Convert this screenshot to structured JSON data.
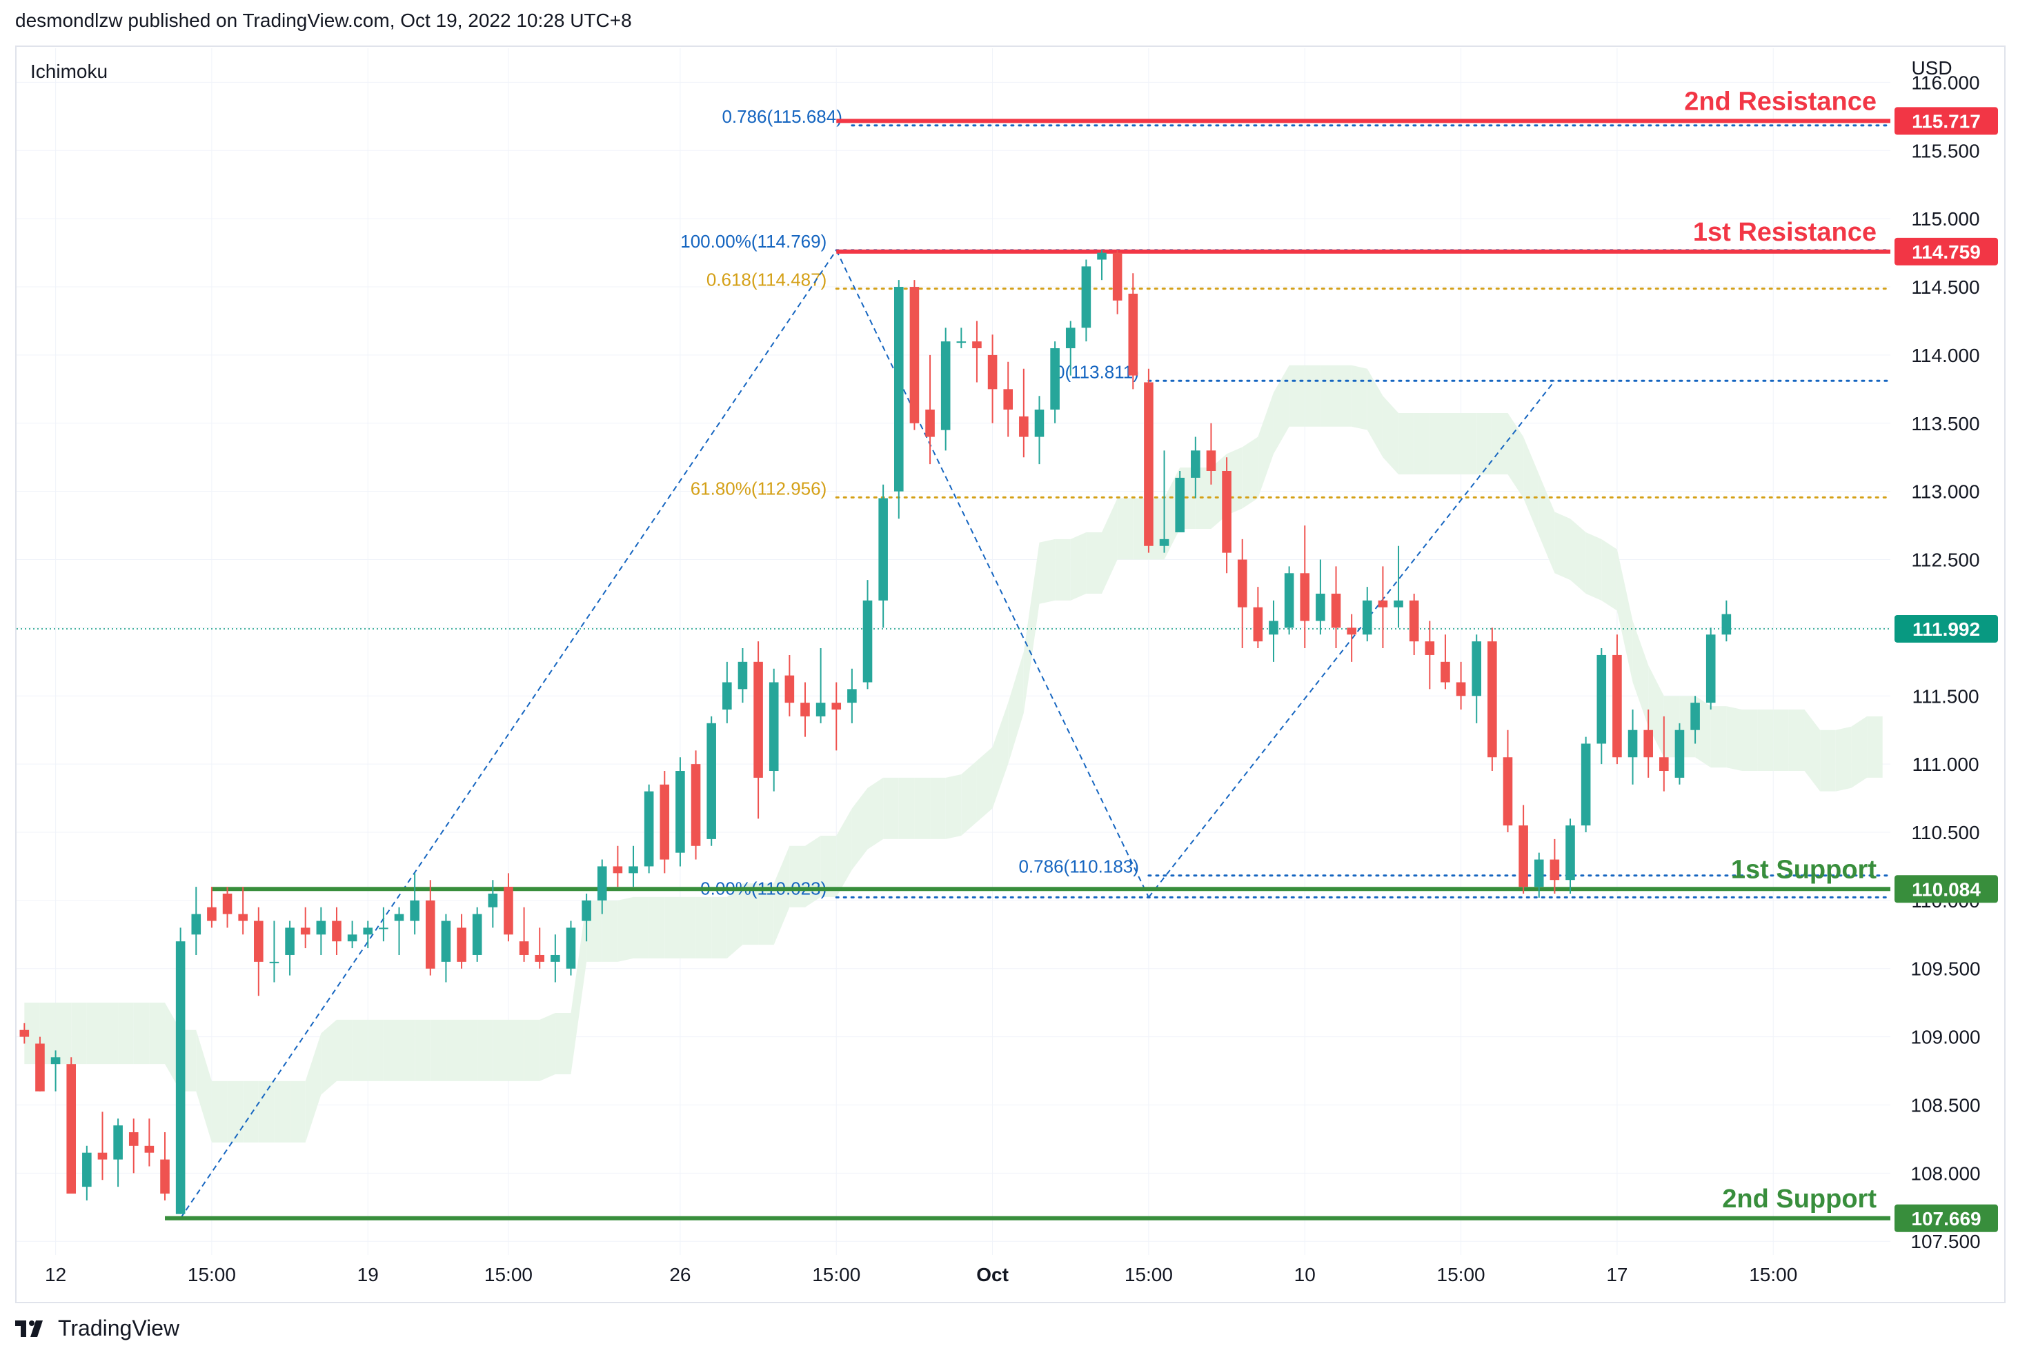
{
  "header": {
    "published_by": "desmondlzw published on TradingView.com, Oct 19, 2022 10:28 UTC+8"
  },
  "chart": {
    "indicator_label": "Ichimoku",
    "currency": "USD"
  },
  "footer": {
    "brand": "TradingView"
  },
  "colors": {
    "up": "#26a69a",
    "down": "#ef5350",
    "resistance": "#f23645",
    "support": "#388e3c",
    "fib_blue": "#1565c0",
    "fib_orange": "#d4a017",
    "cloud_green": "#e8f5e9",
    "cloud_red": "#fde7e7",
    "last_price": "#089981",
    "grid": "#f0f3fa"
  },
  "chart_data": {
    "type": "candlestick",
    "y_axis": {
      "min": 107.4,
      "max": 116.25,
      "ticks": [
        "107.500",
        "108.000",
        "108.500",
        "109.000",
        "109.500",
        "110.000",
        "110.500",
        "111.000",
        "111.500",
        "112.000",
        "112.500",
        "113.000",
        "113.500",
        "114.000",
        "114.500",
        "115.000",
        "115.500",
        "116.000"
      ],
      "position": "right"
    },
    "x_axis": {
      "bars": 120,
      "ticks": [
        {
          "i": 2,
          "label": "12"
        },
        {
          "i": 12,
          "label": "15:00"
        },
        {
          "i": 22,
          "label": "19"
        },
        {
          "i": 31,
          "label": "15:00"
        },
        {
          "i": 42,
          "label": "26"
        },
        {
          "i": 52,
          "label": "15:00"
        },
        {
          "i": 62,
          "label": "Oct"
        },
        {
          "i": 72,
          "label": "15:00"
        },
        {
          "i": 82,
          "label": "10"
        },
        {
          "i": 92,
          "label": "15:00"
        },
        {
          "i": 102,
          "label": "17"
        },
        {
          "i": 112,
          "label": "15:00"
        }
      ]
    },
    "candles": [
      [
        109.05,
        109.1,
        108.95,
        109.0
      ],
      [
        108.95,
        109.0,
        108.6,
        108.6
      ],
      [
        108.8,
        108.9,
        108.6,
        108.85
      ],
      [
        108.8,
        108.85,
        107.85,
        107.85
      ],
      [
        107.9,
        108.2,
        107.8,
        108.15
      ],
      [
        108.15,
        108.45,
        107.95,
        108.1
      ],
      [
        108.1,
        108.4,
        107.9,
        108.35
      ],
      [
        108.3,
        108.4,
        108.0,
        108.2
      ],
      [
        108.2,
        108.4,
        108.05,
        108.15
      ],
      [
        108.1,
        108.3,
        107.8,
        107.85
      ],
      [
        107.7,
        109.8,
        107.7,
        109.7
      ],
      [
        109.75,
        110.1,
        109.6,
        109.9
      ],
      [
        109.95,
        110.1,
        109.8,
        109.85
      ],
      [
        110.05,
        110.1,
        109.8,
        109.9
      ],
      [
        109.9,
        110.1,
        109.75,
        109.85
      ],
      [
        109.85,
        109.95,
        109.3,
        109.55
      ],
      [
        109.55,
        109.85,
        109.4,
        109.55
      ],
      [
        109.6,
        109.85,
        109.45,
        109.8
      ],
      [
        109.8,
        109.95,
        109.65,
        109.75
      ],
      [
        109.75,
        109.95,
        109.6,
        109.85
      ],
      [
        109.85,
        109.95,
        109.6,
        109.7
      ],
      [
        109.7,
        109.85,
        109.65,
        109.75
      ],
      [
        109.75,
        109.85,
        109.65,
        109.8
      ],
      [
        109.8,
        109.95,
        109.7,
        109.8
      ],
      [
        109.85,
        109.95,
        109.6,
        109.9
      ],
      [
        109.85,
        110.2,
        109.75,
        110.0
      ],
      [
        110.0,
        110.15,
        109.45,
        109.5
      ],
      [
        109.55,
        109.9,
        109.4,
        109.85
      ],
      [
        109.8,
        109.9,
        109.5,
        109.55
      ],
      [
        109.6,
        109.95,
        109.55,
        109.9
      ],
      [
        109.95,
        110.15,
        109.8,
        110.05
      ],
      [
        110.1,
        110.2,
        109.7,
        109.75
      ],
      [
        109.7,
        109.95,
        109.55,
        109.6
      ],
      [
        109.6,
        109.8,
        109.5,
        109.55
      ],
      [
        109.55,
        109.75,
        109.4,
        109.6
      ],
      [
        109.5,
        109.85,
        109.45,
        109.8
      ],
      [
        109.85,
        110.05,
        109.7,
        110.0
      ],
      [
        110.0,
        110.3,
        109.9,
        110.25
      ],
      [
        110.25,
        110.4,
        110.1,
        110.2
      ],
      [
        110.2,
        110.4,
        110.1,
        110.25
      ],
      [
        110.25,
        110.85,
        110.2,
        110.8
      ],
      [
        110.85,
        110.95,
        110.2,
        110.3
      ],
      [
        110.35,
        111.05,
        110.25,
        110.95
      ],
      [
        111.0,
        111.1,
        110.3,
        110.4
      ],
      [
        110.45,
        111.35,
        110.4,
        111.3
      ],
      [
        111.4,
        111.75,
        111.3,
        111.6
      ],
      [
        111.55,
        111.85,
        111.45,
        111.75
      ],
      [
        111.75,
        111.9,
        110.6,
        110.9
      ],
      [
        110.95,
        111.7,
        110.8,
        111.6
      ],
      [
        111.65,
        111.8,
        111.35,
        111.45
      ],
      [
        111.45,
        111.6,
        111.2,
        111.35
      ],
      [
        111.35,
        111.85,
        111.3,
        111.45
      ],
      [
        111.45,
        111.6,
        111.1,
        111.4
      ],
      [
        111.45,
        111.7,
        111.3,
        111.55
      ],
      [
        111.6,
        112.35,
        111.55,
        112.2
      ],
      [
        112.2,
        113.05,
        112.0,
        112.95
      ],
      [
        113.0,
        114.55,
        112.8,
        114.5
      ],
      [
        114.5,
        114.55,
        113.45,
        113.5
      ],
      [
        113.6,
        114.0,
        113.2,
        113.4
      ],
      [
        113.45,
        114.2,
        113.3,
        114.1
      ],
      [
        114.1,
        114.2,
        114.05,
        114.1
      ],
      [
        114.1,
        114.25,
        113.8,
        114.05
      ],
      [
        114.0,
        114.15,
        113.5,
        113.75
      ],
      [
        113.75,
        113.95,
        113.4,
        113.6
      ],
      [
        113.55,
        113.9,
        113.25,
        113.4
      ],
      [
        113.4,
        113.7,
        113.2,
        113.6
      ],
      [
        113.6,
        114.1,
        113.5,
        114.05
      ],
      [
        114.05,
        114.25,
        113.85,
        114.2
      ],
      [
        114.2,
        114.7,
        114.1,
        114.65
      ],
      [
        114.7,
        114.77,
        114.55,
        114.75
      ],
      [
        114.75,
        114.77,
        114.3,
        114.4
      ],
      [
        114.45,
        114.6,
        113.75,
        113.85
      ],
      [
        113.8,
        113.9,
        112.55,
        112.6
      ],
      [
        112.6,
        113.3,
        112.55,
        112.65
      ],
      [
        112.7,
        113.15,
        112.7,
        113.1
      ],
      [
        113.1,
        113.4,
        112.95,
        113.3
      ],
      [
        113.3,
        113.5,
        113.05,
        113.15
      ],
      [
        113.15,
        113.25,
        112.4,
        112.55
      ],
      [
        112.5,
        112.65,
        111.85,
        112.15
      ],
      [
        112.15,
        112.3,
        111.85,
        111.9
      ],
      [
        111.95,
        112.2,
        111.75,
        112.05
      ],
      [
        112.0,
        112.45,
        111.95,
        112.4
      ],
      [
        112.4,
        112.75,
        111.85,
        112.05
      ],
      [
        112.05,
        112.5,
        111.95,
        112.25
      ],
      [
        112.25,
        112.45,
        111.85,
        112.0
      ],
      [
        112.0,
        112.1,
        111.75,
        111.95
      ],
      [
        111.95,
        112.3,
        111.9,
        112.2
      ],
      [
        112.2,
        112.45,
        111.85,
        112.15
      ],
      [
        112.15,
        112.6,
        112.0,
        112.2
      ],
      [
        112.2,
        112.25,
        111.8,
        111.9
      ],
      [
        111.9,
        112.05,
        111.55,
        111.8
      ],
      [
        111.75,
        111.95,
        111.55,
        111.6
      ],
      [
        111.6,
        111.75,
        111.4,
        111.5
      ],
      [
        111.5,
        111.95,
        111.3,
        111.9
      ],
      [
        111.9,
        112.0,
        110.95,
        111.05
      ],
      [
        111.05,
        111.25,
        110.5,
        110.55
      ],
      [
        110.55,
        110.7,
        110.05,
        110.1
      ],
      [
        110.1,
        110.35,
        110.02,
        110.3
      ],
      [
        110.3,
        110.45,
        110.05,
        110.15
      ],
      [
        110.15,
        110.6,
        110.05,
        110.55
      ],
      [
        110.55,
        111.2,
        110.5,
        111.15
      ],
      [
        111.15,
        111.85,
        111.0,
        111.8
      ],
      [
        111.8,
        111.95,
        111.0,
        111.05
      ],
      [
        111.05,
        111.4,
        110.85,
        111.25
      ],
      [
        111.25,
        111.4,
        110.9,
        111.05
      ],
      [
        111.05,
        111.35,
        110.8,
        110.95
      ],
      [
        110.9,
        111.3,
        110.85,
        111.25
      ],
      [
        111.25,
        111.5,
        111.15,
        111.45
      ],
      [
        111.45,
        112.0,
        111.4,
        111.95
      ],
      [
        111.95,
        112.2,
        111.9,
        112.1
      ]
    ],
    "levels": [
      {
        "label": "2nd Resistance",
        "value": 115.717,
        "tag": "115.717",
        "kind": "resistance"
      },
      {
        "label": "1st Resistance",
        "value": 114.759,
        "tag": "114.759",
        "kind": "resistance"
      },
      {
        "label": "1st Support",
        "value": 110.084,
        "tag": "110.084",
        "kind": "support"
      },
      {
        "label": "2nd Support",
        "value": 107.669,
        "tag": "107.669",
        "kind": "support"
      }
    ],
    "last_price": {
      "value": 111.992,
      "tag": "111.992"
    },
    "fib_lines": [
      {
        "label": "0.786(115.684)",
        "value": 115.684,
        "color": "blue",
        "from": 53
      },
      {
        "label": "100.00%(114.769)",
        "value": 114.769,
        "color": "blue",
        "from": 52
      },
      {
        "label": "0.618(114.487)",
        "value": 114.487,
        "color": "orange",
        "from": 52
      },
      {
        "label": "0(113.811)",
        "value": 113.811,
        "color": "blue",
        "from": 72
      },
      {
        "label": "61.80%(112.956)",
        "value": 112.956,
        "color": "orange",
        "from": 52
      },
      {
        "label": "0.786(110.183)",
        "value": 110.183,
        "color": "blue",
        "from": 72
      },
      {
        "label": "0.00%(110.023)",
        "value": 110.023,
        "color": "blue",
        "from": 52
      }
    ]
  }
}
